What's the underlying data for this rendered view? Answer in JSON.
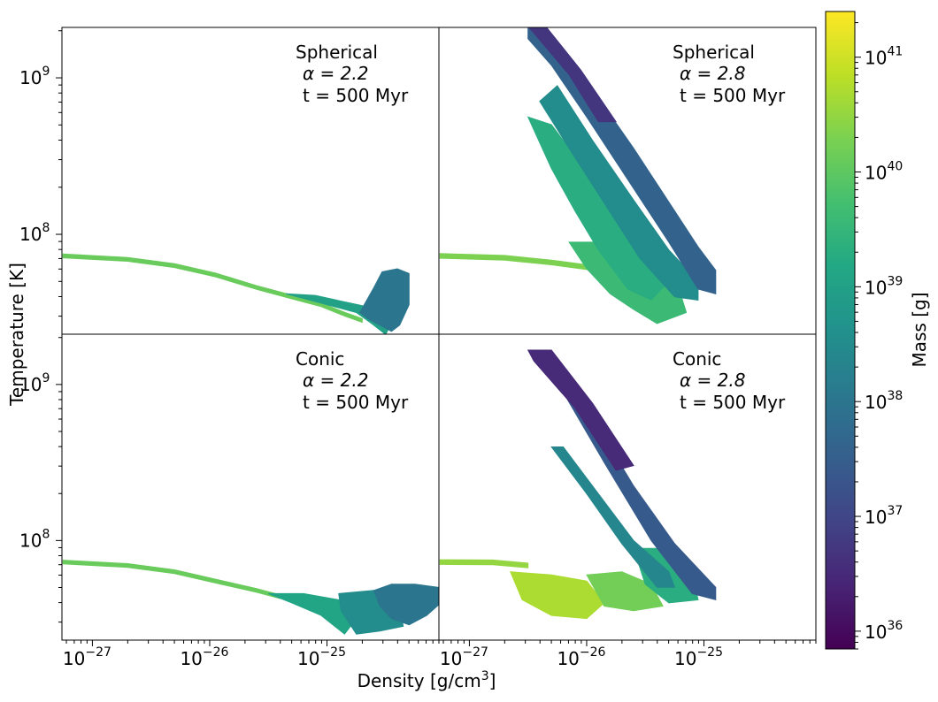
{
  "figure": {
    "xlabel": "Density [g/cm",
    "xlabel_sup": "3",
    "xlabel_tail": "]",
    "ylabel": "Temperature [K]",
    "colorbar_label": "Mass [g]"
  },
  "chart_data": {
    "type": "heatmap",
    "xscale": "log",
    "yscale": "log",
    "xlim": [
      5.5e-28,
      9e-25
    ],
    "ylim": [
      23000000.0,
      2100000000.0
    ],
    "colorbar": {
      "scale": "log",
      "colormap": "viridis",
      "range": [
        7e+35,
        2.5e+41
      ],
      "ticks": [
        {
          "base": "10",
          "exp": "36",
          "value": 1e+36
        },
        {
          "base": "10",
          "exp": "37",
          "value": 1e+37
        },
        {
          "base": "10",
          "exp": "38",
          "value": 1e+38
        },
        {
          "base": "10",
          "exp": "39",
          "value": 1e+39
        },
        {
          "base": "10",
          "exp": "40",
          "value": 1e+40
        },
        {
          "base": "10",
          "exp": "41",
          "value": 1e+41
        }
      ]
    },
    "x_ticks": [
      {
        "base": "10",
        "exp": "−27",
        "value": 1e-27
      },
      {
        "base": "10",
        "exp": "−26",
        "value": 1e-26
      },
      {
        "base": "10",
        "exp": "−25",
        "value": 1e-25
      }
    ],
    "y_ticks": [
      {
        "base": "10",
        "exp": "8",
        "value": 100000000.0
      },
      {
        "base": "10",
        "exp": "9",
        "value": 1000000000.0
      }
    ],
    "panels": [
      {
        "id": "spherical-2.2",
        "geometry": "Spherical",
        "alpha_text": "α = 2.2",
        "time_text": "t = 500 Myr",
        "regions": [
          {
            "kind": "strip",
            "logmass": 40.1,
            "points": [
              [
                -27.25,
                7.862
              ],
              [
                -26.7,
                7.84
              ],
              [
                -26.3,
                7.8
              ],
              [
                -25.95,
                7.74
              ],
              [
                -25.6,
                7.66
              ],
              [
                -25.3,
                7.6
              ],
              [
                -25.05,
                7.55
              ],
              [
                -24.85,
                7.49
              ],
              [
                -24.7,
                7.45
              ]
            ],
            "halfwidth": 0.012
          },
          {
            "kind": "polygon",
            "logmass": 39.0,
            "points": [
              [
                -25.35,
                7.62
              ],
              [
                -25.1,
                7.57
              ],
              [
                -24.9,
                7.53
              ],
              [
                -24.75,
                7.5
              ],
              [
                -24.62,
                7.43
              ],
              [
                -24.5,
                7.36
              ],
              [
                -24.45,
                7.43
              ],
              [
                -24.55,
                7.52
              ],
              [
                -24.8,
                7.56
              ],
              [
                -25.1,
                7.61
              ]
            ]
          },
          {
            "kind": "polygon",
            "logmass": 38.0,
            "points": [
              [
                -24.72,
                7.5
              ],
              [
                -24.6,
                7.66
              ],
              [
                -24.53,
                7.76
              ],
              [
                -24.4,
                7.78
              ],
              [
                -24.3,
                7.75
              ],
              [
                -24.3,
                7.55
              ],
              [
                -24.38,
                7.42
              ],
              [
                -24.45,
                7.38
              ],
              [
                -24.55,
                7.42
              ],
              [
                -24.65,
                7.46
              ]
            ]
          }
        ]
      },
      {
        "id": "spherical-2.8",
        "geometry": "Spherical",
        "alpha_text": "α = 2.8",
        "time_text": "t = 500 Myr",
        "regions": [
          {
            "kind": "strip",
            "logmass": 40.3,
            "points": [
              [
                -27.25,
                7.862
              ],
              [
                -26.7,
                7.85
              ],
              [
                -26.3,
                7.82
              ],
              [
                -25.9,
                7.78
              ],
              [
                -25.6,
                7.72
              ],
              [
                -25.4,
                7.66
              ]
            ],
            "halfwidth": 0.015
          },
          {
            "kind": "polygon",
            "logmass": 39.6,
            "points": [
              [
                -26.15,
                7.95
              ],
              [
                -25.75,
                7.95
              ],
              [
                -25.45,
                7.8
              ],
              [
                -25.2,
                7.62
              ],
              [
                -25.15,
                7.5
              ],
              [
                -25.4,
                7.43
              ],
              [
                -25.6,
                7.52
              ],
              [
                -25.8,
                7.62
              ],
              [
                -26.0,
                7.78
              ]
            ]
          },
          {
            "kind": "polygon",
            "logmass": 39.3,
            "points": [
              [
                -26.5,
                8.75
              ],
              [
                -26.3,
                8.7
              ],
              [
                -26.0,
                8.4
              ],
              [
                -25.7,
                8.1
              ],
              [
                -25.45,
                7.85
              ],
              [
                -25.3,
                7.7
              ],
              [
                -25.45,
                7.58
              ],
              [
                -25.65,
                7.65
              ],
              [
                -25.9,
                7.9
              ],
              [
                -26.1,
                8.15
              ],
              [
                -26.3,
                8.42
              ]
            ]
          },
          {
            "kind": "polygon",
            "logmass": 38.5,
            "points": [
              [
                -26.25,
                8.95
              ],
              [
                -25.95,
                8.6
              ],
              [
                -25.6,
                8.22
              ],
              [
                -25.3,
                7.9
              ],
              [
                -25.05,
                7.7
              ],
              [
                -25.05,
                7.58
              ],
              [
                -25.25,
                7.6
              ],
              [
                -25.55,
                7.85
              ],
              [
                -25.85,
                8.2
              ],
              [
                -26.15,
                8.55
              ],
              [
                -26.4,
                8.85
              ]
            ]
          },
          {
            "kind": "polygon",
            "logmass": 37.6,
            "points": [
              [
                -26.5,
                9.33
              ],
              [
                -26.35,
                9.33
              ],
              [
                -26.0,
                8.98
              ],
              [
                -25.6,
                8.55
              ],
              [
                -25.25,
                8.15
              ],
              [
                -25.05,
                7.92
              ],
              [
                -24.9,
                7.77
              ],
              [
                -24.9,
                7.62
              ],
              [
                -25.05,
                7.65
              ],
              [
                -25.3,
                7.95
              ],
              [
                -25.65,
                8.35
              ],
              [
                -26.0,
                8.75
              ],
              [
                -26.3,
                9.08
              ],
              [
                -26.5,
                9.25
              ]
            ]
          },
          {
            "kind": "polygon",
            "logmass": 36.7,
            "points": [
              [
                -26.5,
                9.33
              ],
              [
                -26.35,
                9.33
              ],
              [
                -26.05,
                9.05
              ],
              [
                -25.75,
                8.72
              ],
              [
                -25.9,
                8.72
              ],
              [
                -26.15,
                9.02
              ]
            ]
          }
        ]
      },
      {
        "id": "conic-2.2",
        "geometry": "Conic",
        "alpha_text": "α = 2.2",
        "time_text": "t = 500 Myr",
        "regions": [
          {
            "kind": "strip",
            "logmass": 40.1,
            "points": [
              [
                -27.25,
                7.862
              ],
              [
                -26.7,
                7.84
              ],
              [
                -26.3,
                7.8
              ],
              [
                -25.95,
                7.74
              ],
              [
                -25.6,
                7.68
              ],
              [
                -25.4,
                7.64
              ]
            ],
            "halfwidth": 0.012
          },
          {
            "kind": "polygon",
            "logmass": 39.1,
            "points": [
              [
                -25.5,
                7.66
              ],
              [
                -25.2,
                7.66
              ],
              [
                -24.9,
                7.62
              ],
              [
                -24.75,
                7.5
              ],
              [
                -24.85,
                7.4
              ],
              [
                -25.05,
                7.52
              ],
              [
                -25.3,
                7.6
              ]
            ]
          },
          {
            "kind": "polygon",
            "logmass": 38.5,
            "points": [
              [
                -24.9,
                7.66
              ],
              [
                -24.6,
                7.68
              ],
              [
                -24.4,
                7.66
              ],
              [
                -24.35,
                7.45
              ],
              [
                -24.55,
                7.42
              ],
              [
                -24.75,
                7.4
              ],
              [
                -24.88,
                7.55
              ]
            ]
          },
          {
            "kind": "polygon",
            "logmass": 38.0,
            "points": [
              [
                -24.6,
                7.68
              ],
              [
                -24.45,
                7.72
              ],
              [
                -24.25,
                7.72
              ],
              [
                -24.05,
                7.7
              ],
              [
                -24.0,
                7.62
              ],
              [
                -24.15,
                7.52
              ],
              [
                -24.3,
                7.46
              ],
              [
                -24.45,
                7.5
              ],
              [
                -24.55,
                7.58
              ]
            ]
          }
        ]
      },
      {
        "id": "conic-2.8",
        "geometry": "Conic",
        "alpha_text": "α = 2.8",
        "time_text": "t = 500 Myr",
        "regions": [
          {
            "kind": "strip",
            "logmass": 40.5,
            "points": [
              [
                -27.25,
                7.862
              ],
              [
                -26.8,
                7.86
              ],
              [
                -26.5,
                7.84
              ]
            ],
            "halfwidth": 0.015
          },
          {
            "kind": "polygon",
            "logmass": 40.7,
            "points": [
              [
                -26.65,
                7.8
              ],
              [
                -26.3,
                7.78
              ],
              [
                -26.0,
                7.74
              ],
              [
                -25.85,
                7.6
              ],
              [
                -26.0,
                7.5
              ],
              [
                -26.3,
                7.52
              ],
              [
                -26.55,
                7.62
              ]
            ]
          },
          {
            "kind": "polygon",
            "logmass": 40.2,
            "points": [
              [
                -26.0,
                7.78
              ],
              [
                -25.7,
                7.8
              ],
              [
                -25.45,
                7.72
              ],
              [
                -25.35,
                7.58
              ],
              [
                -25.6,
                7.55
              ],
              [
                -25.85,
                7.58
              ]
            ]
          },
          {
            "kind": "polygon",
            "logmass": 39.3,
            "points": [
              [
                -25.6,
                7.95
              ],
              [
                -25.3,
                7.95
              ],
              [
                -25.1,
                7.8
              ],
              [
                -25.05,
                7.62
              ],
              [
                -25.3,
                7.6
              ],
              [
                -25.5,
                7.72
              ]
            ]
          },
          {
            "kind": "polygon",
            "logmass": 38.4,
            "points": [
              [
                -26.2,
                8.6
              ],
              [
                -25.9,
                8.3
              ],
              [
                -25.6,
                8.0
              ],
              [
                -25.3,
                7.8
              ],
              [
                -25.25,
                7.7
              ],
              [
                -25.4,
                7.7
              ],
              [
                -25.7,
                7.98
              ],
              [
                -26.0,
                8.3
              ],
              [
                -26.3,
                8.6
              ]
            ]
          },
          {
            "kind": "polygon",
            "logmass": 37.4,
            "points": [
              [
                -26.35,
                9.2
              ],
              [
                -26.0,
                8.85
              ],
              [
                -25.6,
                8.35
              ],
              [
                -25.25,
                7.98
              ],
              [
                -24.9,
                7.7
              ],
              [
                -24.9,
                7.62
              ],
              [
                -25.1,
                7.66
              ],
              [
                -25.45,
                8.0
              ],
              [
                -25.85,
                8.5
              ],
              [
                -26.2,
                8.95
              ],
              [
                -26.45,
                9.2
              ]
            ]
          },
          {
            "kind": "polygon",
            "logmass": 36.5,
            "points": [
              [
                -26.5,
                9.22
              ],
              [
                -26.3,
                9.22
              ],
              [
                -25.95,
                8.88
              ],
              [
                -25.6,
                8.48
              ],
              [
                -25.75,
                8.45
              ],
              [
                -26.1,
                8.85
              ],
              [
                -26.45,
                9.15
              ]
            ]
          }
        ]
      }
    ]
  }
}
